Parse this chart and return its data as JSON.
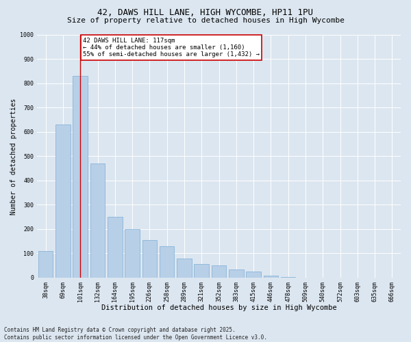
{
  "title1": "42, DAWS HILL LANE, HIGH WYCOMBE, HP11 1PU",
  "title2": "Size of property relative to detached houses in High Wycombe",
  "xlabel": "Distribution of detached houses by size in High Wycombe",
  "ylabel": "Number of detached properties",
  "categories": [
    "38sqm",
    "69sqm",
    "101sqm",
    "132sqm",
    "164sqm",
    "195sqm",
    "226sqm",
    "258sqm",
    "289sqm",
    "321sqm",
    "352sqm",
    "383sqm",
    "415sqm",
    "446sqm",
    "478sqm",
    "509sqm",
    "540sqm",
    "572sqm",
    "603sqm",
    "635sqm",
    "666sqm"
  ],
  "values": [
    110,
    630,
    830,
    470,
    250,
    200,
    155,
    130,
    80,
    55,
    50,
    35,
    25,
    8,
    2,
    0,
    0,
    0,
    0,
    0,
    0
  ],
  "bar_color": "#b8cfe8",
  "bar_edge_color": "#7aadd4",
  "highlight_color": "#cc0000",
  "highlight_bar_index": 2,
  "annotation_text": "42 DAWS HILL LANE: 117sqm\n← 44% of detached houses are smaller (1,160)\n55% of semi-detached houses are larger (1,432) →",
  "annotation_box_color": "#ffffff",
  "annotation_box_edge": "#cc0000",
  "ylim": [
    0,
    1000
  ],
  "yticks": [
    0,
    100,
    200,
    300,
    400,
    500,
    600,
    700,
    800,
    900,
    1000
  ],
  "bg_color": "#dce6f0",
  "plot_bg_color": "#dce6f0",
  "grid_color": "#ffffff",
  "footer_line1": "Contains HM Land Registry data © Crown copyright and database right 2025.",
  "footer_line2": "Contains public sector information licensed under the Open Government Licence v3.0.",
  "title1_fontsize": 9,
  "title2_fontsize": 8,
  "xlabel_fontsize": 7.5,
  "ylabel_fontsize": 7,
  "tick_fontsize": 6,
  "annotation_fontsize": 6.5,
  "footer_fontsize": 5.5
}
